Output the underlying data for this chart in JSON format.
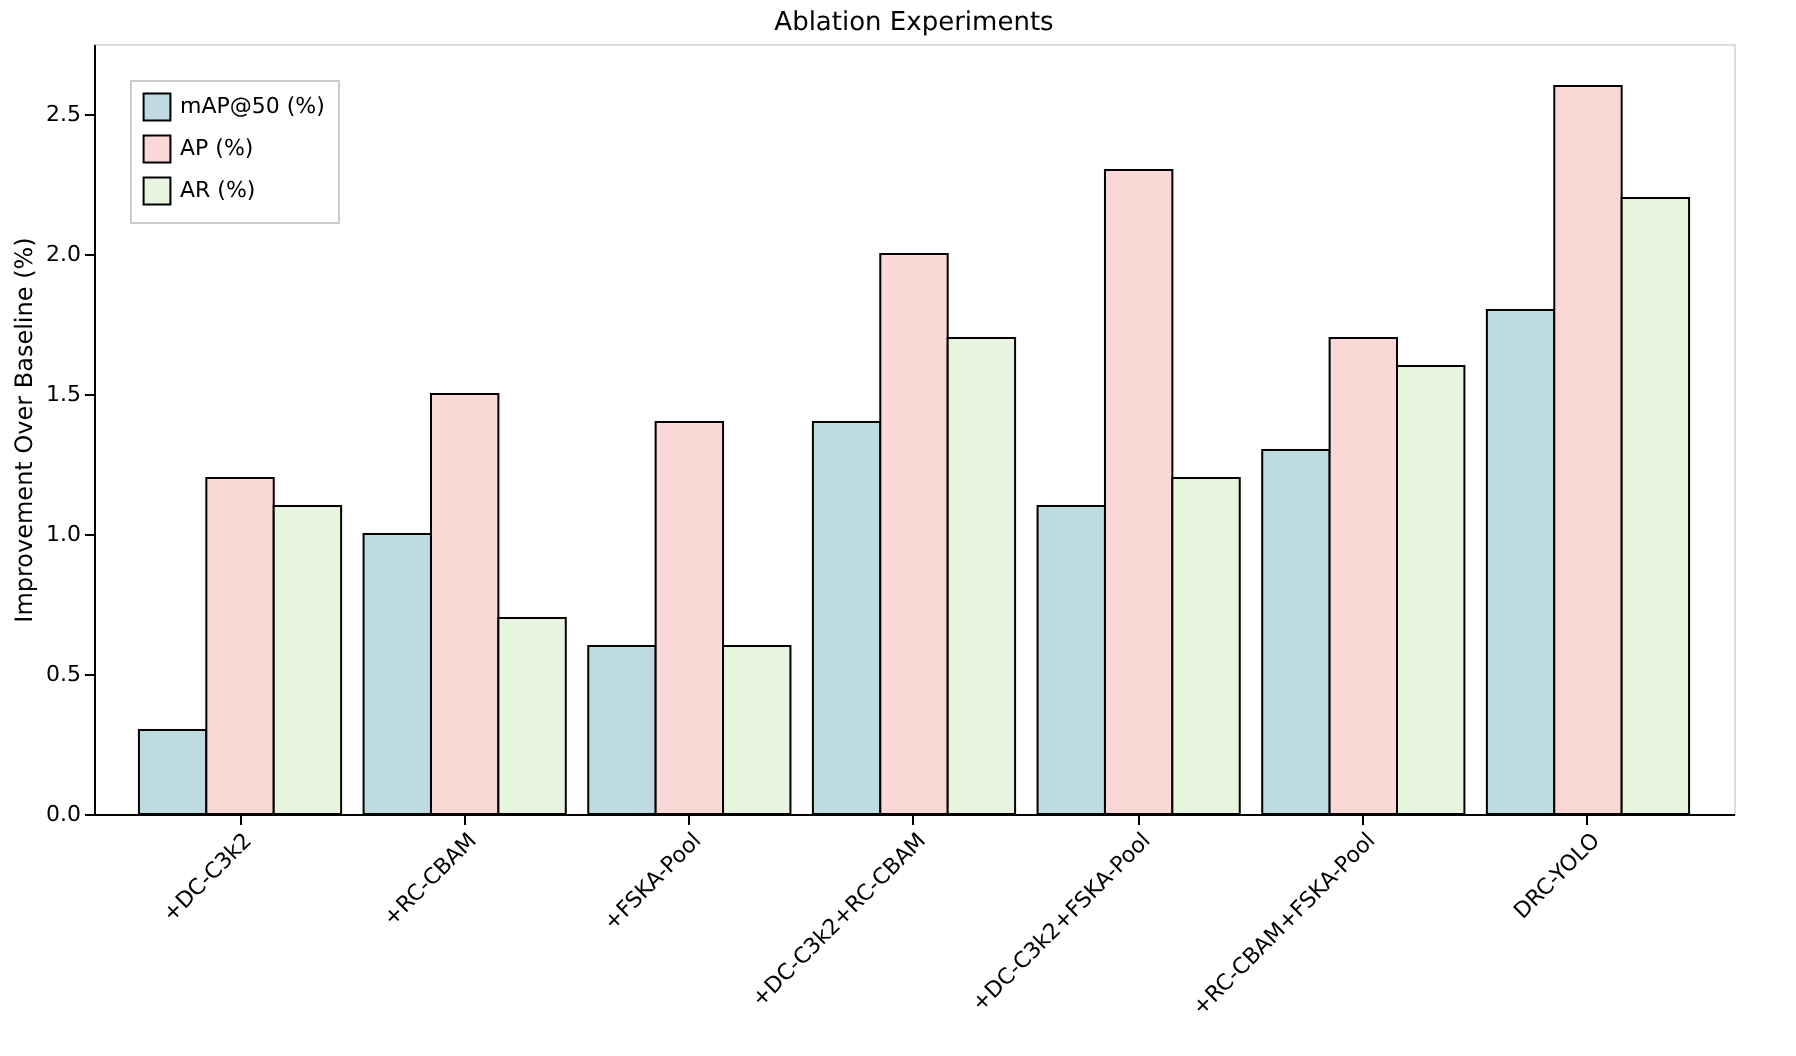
{
  "chart_data": {
    "type": "bar",
    "title": "Ablation Experiments",
    "ylabel": "Improvement Over Baseline (%)",
    "categories": [
      "+DC-C3k2",
      "+RC-CBAM",
      "+FSKA-Pool",
      "+DC-C3k2+RC-CBAM",
      "+DC-C3k2+FSKA-Pool",
      "+RC-CBAM+FSKA-Pool",
      "DRC-YOLO"
    ],
    "series": [
      {
        "name": "mAP@50 (%)",
        "color": "#bddbe0",
        "values": [
          0.3,
          1.0,
          0.6,
          1.4,
          1.1,
          1.3,
          1.8
        ]
      },
      {
        "name": "AP (%)",
        "color": "#f9d8d6",
        "values": [
          1.2,
          1.5,
          1.4,
          2.0,
          2.3,
          1.7,
          2.6
        ]
      },
      {
        "name": "AR (%)",
        "color": "#e8f5de",
        "values": [
          1.1,
          0.7,
          0.6,
          1.7,
          1.2,
          1.6,
          2.2
        ]
      }
    ],
    "ylim": [
      0,
      2.75
    ],
    "yticks": [
      {
        "value": 0,
        "label": "0.0"
      },
      0.5,
      {
        "value": 1,
        "label": "1.0"
      },
      1.5,
      {
        "value": 2,
        "label": "2.0"
      },
      2.5
    ],
    "legend": "top left",
    "grid": false
  }
}
